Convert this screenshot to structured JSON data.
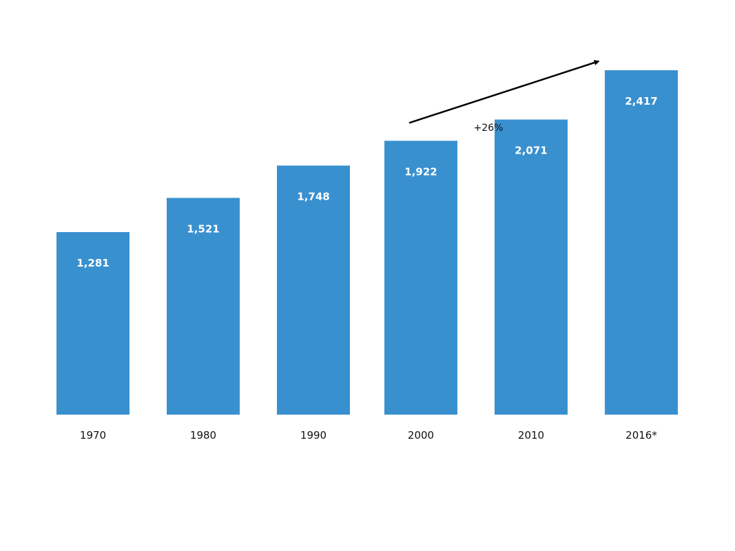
{
  "chart_data": {
    "type": "bar",
    "categories": [
      "1970",
      "1980",
      "1990",
      "2000",
      "2010",
      "2016*"
    ],
    "values": [
      1281,
      1521,
      1748,
      1922,
      2071,
      2417
    ],
    "value_labels": [
      "1,281",
      "1,521",
      "1,748",
      "1,922",
      "2,071",
      "2,417"
    ],
    "title": "",
    "xlabel": "",
    "ylabel": "",
    "ylim": [
      0,
      2620
    ],
    "grid": false,
    "legend": "none",
    "bar_color": "#3990cf",
    "annotation": {
      "text": "+26%",
      "from_category": "2000",
      "to_category": "2016*"
    }
  }
}
